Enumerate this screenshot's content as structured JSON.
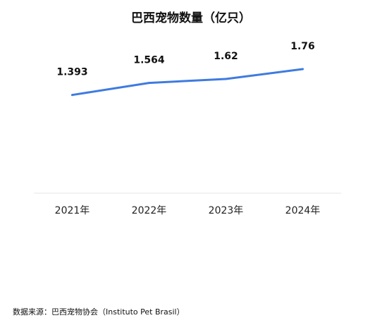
{
  "chart_data": {
    "type": "line",
    "title": "巴西宠物数量（亿只）",
    "categories": [
      "2021年",
      "2022年",
      "2023年",
      "2024年"
    ],
    "series": [
      {
        "values": [
          1.393,
          1.564,
          1.62,
          1.76
        ]
      }
    ],
    "data_labels": [
      "1.393",
      "1.564",
      "1.62",
      "1.76"
    ],
    "xlabel": "",
    "ylabel": "",
    "ylim": [
      0,
      2.45
    ],
    "grid": false,
    "legend": "none",
    "line_color": "#3f7be0",
    "baseline_color": "#e6e6e6"
  },
  "footer": {
    "source": "数据来源：巴西宠物协会（Instituto Pet Brasil）"
  }
}
